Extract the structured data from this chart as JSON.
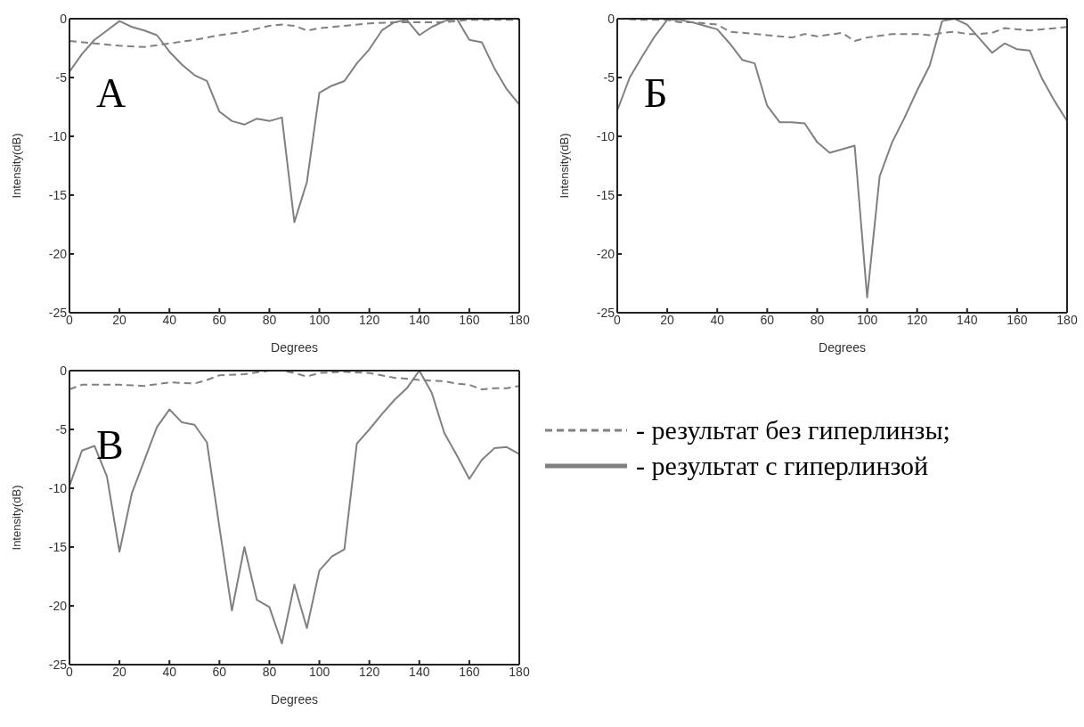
{
  "chart_data": [
    {
      "type": "line",
      "title": "А",
      "xlabel": "Degrees",
      "ylabel": "Intensity(dB)",
      "xlim": [
        0,
        180
      ],
      "xticks": [
        0,
        20,
        40,
        60,
        80,
        100,
        120,
        140,
        160,
        180
      ],
      "ylim": [
        -25,
        0
      ],
      "yticks": [
        -25,
        -20,
        -15,
        -10,
        -5,
        0
      ],
      "grid": false,
      "legend": false,
      "series": [
        {
          "color": "#808080",
          "line_style": "dashed",
          "x": [
            0,
            10,
            20,
            30,
            40,
            50,
            60,
            70,
            80,
            85,
            90,
            95,
            100,
            110,
            120,
            130,
            140,
            150,
            160,
            170,
            180
          ],
          "values": [
            -1.9,
            -2.1,
            -2.3,
            -2.4,
            -2.1,
            -1.8,
            -1.4,
            -1.1,
            -0.6,
            -0.5,
            -0.6,
            -1.0,
            -0.8,
            -0.6,
            -0.4,
            -0.3,
            -0.3,
            -0.3,
            -0.1,
            -0.1,
            -0.1
          ]
        },
        {
          "color": "#808080",
          "line_style": "solid",
          "x": [
            0,
            5,
            10,
            15,
            20,
            25,
            30,
            35,
            40,
            45,
            50,
            55,
            60,
            65,
            70,
            75,
            80,
            85,
            90,
            95,
            100,
            105,
            110,
            115,
            120,
            125,
            130,
            135,
            140,
            145,
            150,
            155,
            160,
            165,
            170,
            175,
            180
          ],
          "values": [
            -4.5,
            -3,
            -1.8,
            -1,
            -0.2,
            -0.7,
            -1,
            -1.4,
            -2.8,
            -3.9,
            -4.8,
            -5.3,
            -7.9,
            -8.7,
            -9.0,
            -8.5,
            -8.7,
            -8.4,
            -17.3,
            -13.9,
            -6.3,
            -5.7,
            -5.3,
            -3.8,
            -2.6,
            -1.0,
            -0.3,
            -0.1,
            -1.4,
            -0.7,
            -0.2,
            0,
            -1.8,
            -2.0,
            -4.2,
            -6.0,
            -7.3
          ]
        }
      ]
    },
    {
      "type": "line",
      "title": "Б",
      "xlabel": "Degrees",
      "ylabel": "Intensity(dB)",
      "xlim": [
        0,
        180
      ],
      "xticks": [
        0,
        20,
        40,
        60,
        80,
        100,
        120,
        140,
        160,
        180
      ],
      "ylim": [
        -25,
        0
      ],
      "yticks": [
        -25,
        -20,
        -15,
        -10,
        -5,
        0
      ],
      "grid": false,
      "legend": false,
      "series": [
        {
          "color": "#808080",
          "line_style": "dashed",
          "x": [
            0,
            10,
            20,
            25,
            30,
            40,
            45,
            50,
            60,
            70,
            75,
            80,
            90,
            95,
            100,
            110,
            120,
            125,
            130,
            135,
            140,
            145,
            150,
            155,
            160,
            165,
            170,
            180
          ],
          "values": [
            0,
            -0.1,
            -0.1,
            -0.3,
            -0.3,
            -0.5,
            -1.1,
            -1.2,
            -1.4,
            -1.6,
            -1.3,
            -1.5,
            -1.2,
            -1.9,
            -1.6,
            -1.3,
            -1.3,
            -1.4,
            -1.2,
            -1.1,
            -1.3,
            -1.3,
            -1.2,
            -0.8,
            -0.9,
            -1.0,
            -0.9,
            -0.7
          ]
        },
        {
          "color": "#808080",
          "line_style": "solid",
          "x": [
            0,
            5,
            10,
            15,
            20,
            25,
            30,
            35,
            40,
            45,
            50,
            55,
            60,
            65,
            70,
            75,
            80,
            85,
            90,
            95,
            100,
            105,
            110,
            115,
            120,
            125,
            130,
            135,
            140,
            145,
            150,
            155,
            160,
            165,
            170,
            175,
            180
          ],
          "values": [
            -7.8,
            -5,
            -3.2,
            -1.5,
            -0.1,
            -0.1,
            -0.3,
            -0.6,
            -0.9,
            -2.1,
            -3.5,
            -3.8,
            -7.4,
            -8.8,
            -8.8,
            -8.9,
            -10.5,
            -11.4,
            -11.1,
            -10.8,
            -23.7,
            -13.4,
            -10.5,
            -8.4,
            -6.1,
            -4.0,
            -0.2,
            0,
            -0.5,
            -1.7,
            -2.9,
            -2.1,
            -2.6,
            -2.7,
            -5.1,
            -7.0,
            -8.7
          ]
        }
      ]
    },
    {
      "type": "line",
      "title": "В",
      "xlabel": "Degrees",
      "ylabel": "Intensity(dB)",
      "xlim": [
        0,
        180
      ],
      "xticks": [
        0,
        20,
        40,
        60,
        80,
        100,
        120,
        140,
        160,
        180
      ],
      "ylim": [
        -25,
        0
      ],
      "yticks": [
        -25,
        -20,
        -15,
        -10,
        -5,
        0
      ],
      "grid": false,
      "legend": "right",
      "series": [
        {
          "name": "- результат без гиперлинзы;",
          "color": "#808080",
          "line_style": "dashed",
          "x": [
            0,
            5,
            10,
            20,
            30,
            40,
            50,
            55,
            60,
            70,
            80,
            85,
            90,
            95,
            100,
            110,
            120,
            130,
            140,
            150,
            155,
            160,
            165,
            170,
            175,
            180
          ],
          "values": [
            -1.6,
            -1.2,
            -1.2,
            -1.2,
            -1.3,
            -1.0,
            -1.1,
            -0.8,
            -0.4,
            -0.3,
            0,
            0,
            -0.2,
            -0.5,
            -0.2,
            -0.1,
            -0.2,
            -0.6,
            -0.8,
            -0.9,
            -1.1,
            -1.2,
            -1.6,
            -1.5,
            -1.5,
            -1.3
          ]
        },
        {
          "name": "- результат с гиперлинзой",
          "color": "#808080",
          "line_style": "solid",
          "x": [
            0,
            5,
            10,
            15,
            20,
            25,
            30,
            35,
            40,
            45,
            50,
            55,
            60,
            65,
            70,
            75,
            80,
            85,
            90,
            95,
            100,
            105,
            110,
            115,
            120,
            125,
            130,
            135,
            140,
            145,
            150,
            155,
            160,
            165,
            170,
            175,
            180
          ],
          "values": [
            -9.8,
            -6.8,
            -6.4,
            -9,
            -15.4,
            -10.4,
            -7.6,
            -4.8,
            -3.3,
            -4.4,
            -4.6,
            -6.1,
            -13.3,
            -20.4,
            -15.0,
            -19.5,
            -20.1,
            -23.2,
            -18.2,
            -21.9,
            -17.0,
            -15.8,
            -15.2,
            -6.2,
            -5.0,
            -3.7,
            -2.5,
            -1.5,
            0,
            -1.9,
            -5.3,
            -7.2,
            -9.2,
            -7.6,
            -6.6,
            -6.5,
            -7.1
          ]
        }
      ]
    }
  ]
}
